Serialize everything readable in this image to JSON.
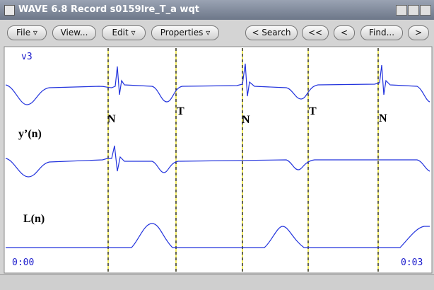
{
  "window": {
    "title": "WAVE 6.8  Record s0159lre_T_a wqt",
    "toolbar": [
      "File ▿",
      "View...",
      "Edit ▿",
      "Properties ▿",
      "< Search",
      "<<",
      "<",
      "Find...",
      ">"
    ],
    "signal_label": "v3",
    "annotations": [
      "N",
      "T",
      "N",
      "T",
      "N"
    ],
    "trace_labels": [
      "y’(n)",
      "L(n)"
    ],
    "time_start": "0:00",
    "time_end": "0:03"
  }
}
